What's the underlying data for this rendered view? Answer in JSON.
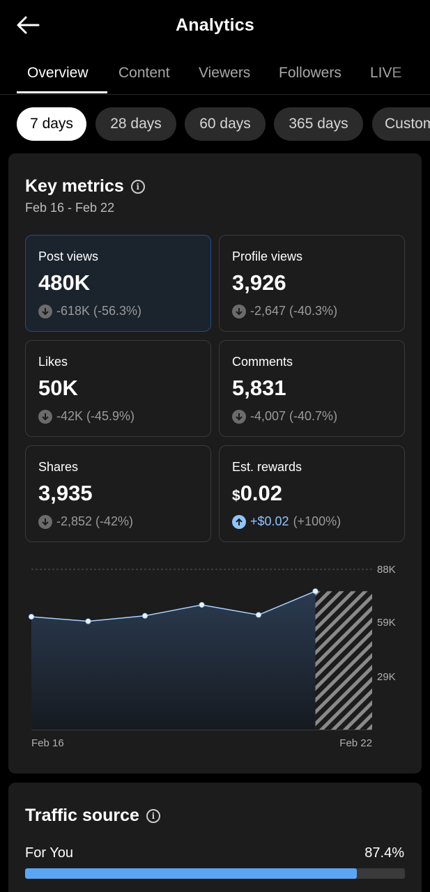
{
  "header": {
    "title": "Analytics",
    "back_icon": "arrow-left-icon"
  },
  "tabs": [
    {
      "label": "Overview",
      "active": true
    },
    {
      "label": "Content"
    },
    {
      "label": "Viewers"
    },
    {
      "label": "Followers"
    },
    {
      "label": "LIVE"
    }
  ],
  "ranges": [
    {
      "label": "7 days",
      "active": true
    },
    {
      "label": "28 days"
    },
    {
      "label": "60 days"
    },
    {
      "label": "365 days"
    },
    {
      "label": "Custom"
    }
  ],
  "key_metrics": {
    "title": "Key metrics",
    "date_range": "Feb 16 - Feb 22",
    "items": [
      {
        "label": "Post views",
        "value": "480K",
        "change": "-618K (-56.3%)",
        "direction": "down",
        "selected": true
      },
      {
        "label": "Profile views",
        "value": "3,926",
        "change": "-2,647 (-40.3%)",
        "direction": "down"
      },
      {
        "label": "Likes",
        "value": "50K",
        "change": "-42K (-45.9%)",
        "direction": "down"
      },
      {
        "label": "Comments",
        "value": "5,831",
        "change": "-4,007 (-40.7%)",
        "direction": "down"
      },
      {
        "label": "Shares",
        "value": "3,935",
        "change": "-2,852 (-42%)",
        "direction": "down"
      },
      {
        "label": "Est. rewards",
        "currency": "$",
        "value": "0.02",
        "change_positive": "+$0.02",
        "change_rest": "(+100%)",
        "direction": "up"
      }
    ]
  },
  "chart_data": {
    "type": "area",
    "x": [
      "Feb 16",
      "Feb 17",
      "Feb 18",
      "Feb 19",
      "Feb 20",
      "Feb 21",
      "Feb 22"
    ],
    "values": [
      62000,
      59500,
      62500,
      68500,
      63000,
      76000,
      76000
    ],
    "partial_last_point": true,
    "ylim": [
      0,
      88000
    ],
    "y_ticks": [
      "88K",
      "59K",
      "29K"
    ],
    "y_tick_values": [
      88000,
      59000,
      29000
    ],
    "x_tick_labels": [
      "Feb 16",
      "Feb 22"
    ],
    "line_color": "#a9d2ff",
    "grid": true
  },
  "traffic_source": {
    "title": "Traffic source",
    "items": [
      {
        "label": "For You",
        "value": "87.4%",
        "fraction": 0.874
      }
    ],
    "bar_color": "#5aa6f5"
  }
}
